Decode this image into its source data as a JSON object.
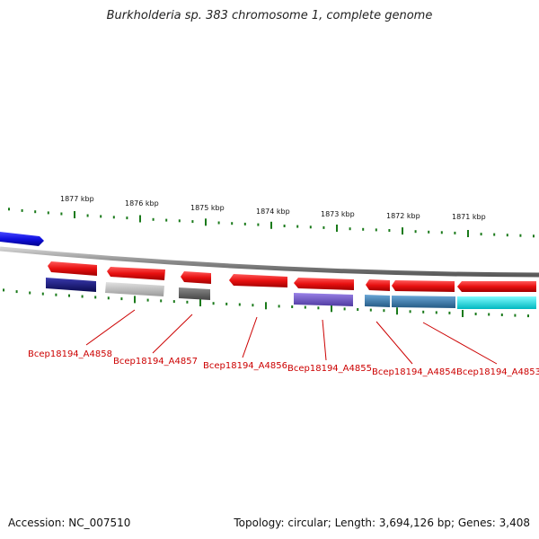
{
  "title": "Burkholderia sp. 383 chromosome 1, complete genome",
  "footer": {
    "accession": "Accession: NC_007510",
    "stats": "Topology: circular; Length: 3,694,126 bp; Genes: 3,408"
  },
  "colors": {
    "backbone": "#8c8c8c",
    "tick": "#1a7a1a",
    "gene_forward": "#ee1111",
    "label": "#cc0000",
    "partial_gene": "#1a1ae6"
  },
  "kbp_labels": [
    "1877 kbp",
    "1876 kbp",
    "1875 kbp",
    "1874 kbp",
    "1873 kbp",
    "1872 kbp",
    "1871 kbp"
  ],
  "genes": [
    {
      "label": "Bcep18194_A4858",
      "product_color": "#1a1a80"
    },
    {
      "label": "Bcep18194_A4857",
      "product_color": "#bdbdbd"
    },
    {
      "label": "Bcep18194_A4856",
      "product_color": "#6a6a6a"
    },
    {
      "label": "Bcep18194_A4855",
      "product_color": "#7a5fcf"
    },
    {
      "label": "Bcep18194_A4854",
      "product_color": "#3f7fb3"
    },
    {
      "label": "Bcep18194_A4853",
      "product_color": "#00e5e5"
    }
  ]
}
